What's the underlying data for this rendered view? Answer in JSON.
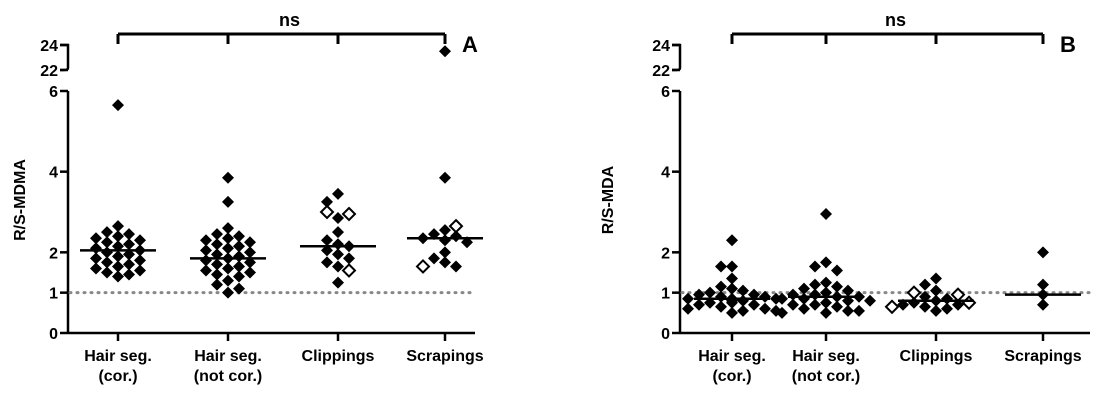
{
  "chart_data": [
    {
      "type": "scatter",
      "panel_label": "A",
      "ylabel": "R/S-MDMA",
      "xlabel": "",
      "categories": [
        "Hair seg.\n(cor.)",
        "Hair seg.\n(not cor.)",
        "Clippings",
        "Scrapings"
      ],
      "y_axis": "broken",
      "y_segments": [
        {
          "range": [
            0,
            6
          ],
          "ticks": [
            0,
            1,
            2,
            4,
            6
          ]
        },
        {
          "range": [
            22,
            24
          ],
          "ticks": [
            22,
            24
          ]
        }
      ],
      "reference_line": 1,
      "significance": "ns",
      "medians": [
        2.05,
        1.85,
        2.15,
        2.35
      ],
      "series": [
        {
          "name": "",
          "fill": "filled",
          "category": 0,
          "values": [
            5.65,
            2.65,
            2.5,
            2.45,
            2.4,
            2.35,
            2.3,
            2.25,
            2.2,
            2.15,
            2.1,
            2.05,
            2.0,
            1.95,
            1.9,
            1.85,
            1.8,
            1.75,
            1.7,
            1.65,
            1.6,
            1.55,
            1.5,
            1.45,
            1.4
          ]
        },
        {
          "name": "",
          "fill": "filled",
          "category": 1,
          "values": [
            3.85,
            3.25,
            2.6,
            2.45,
            2.4,
            2.35,
            2.3,
            2.25,
            2.2,
            2.15,
            2.1,
            2.05,
            2.0,
            1.95,
            1.9,
            1.85,
            1.8,
            1.75,
            1.7,
            1.65,
            1.6,
            1.55,
            1.5,
            1.45,
            1.4,
            1.3,
            1.2,
            1.1,
            1.0
          ]
        },
        {
          "name": "",
          "fill": "filled",
          "category": 2,
          "values": [
            3.45,
            3.25,
            2.85,
            2.5,
            2.3,
            2.2,
            2.15,
            2.05,
            1.95,
            1.85,
            1.75,
            1.65,
            1.25
          ]
        },
        {
          "name": "",
          "fill": "open",
          "category": 2,
          "values": [
            3.0,
            2.95,
            1.55
          ]
        },
        {
          "name": "",
          "fill": "filled",
          "category": 3,
          "values": [
            23.5,
            3.85,
            2.55,
            2.45,
            2.4,
            2.35,
            2.3,
            2.25,
            2.0,
            1.85,
            1.75,
            1.65
          ]
        },
        {
          "name": "",
          "fill": "open",
          "category": 3,
          "values": [
            2.65,
            1.65
          ]
        }
      ]
    },
    {
      "type": "scatter",
      "panel_label": "B",
      "ylabel": "R/S-MDA",
      "xlabel": "",
      "categories": [
        "Hair seg.\n(cor.)",
        "Hair seg.\n(not cor.)",
        "Clippings",
        "Scrapings"
      ],
      "y_axis": "broken",
      "y_segments": [
        {
          "range": [
            0,
            6
          ],
          "ticks": [
            0,
            1,
            2,
            4,
            6
          ]
        },
        {
          "range": [
            22,
            24
          ],
          "ticks": [
            22,
            24
          ]
        }
      ],
      "reference_line": 1,
      "significance": "ns",
      "medians": [
        0.85,
        0.9,
        0.8,
        0.95
      ],
      "series": [
        {
          "name": "",
          "fill": "filled",
          "category": 0,
          "values": [
            2.3,
            1.65,
            1.65,
            1.35,
            1.15,
            1.1,
            1.05,
            1.0,
            0.95,
            0.95,
            0.9,
            0.9,
            0.85,
            0.85,
            0.85,
            0.8,
            0.8,
            0.75,
            0.75,
            0.7,
            0.7,
            0.65,
            0.6,
            0.6,
            0.55,
            0.55,
            0.5
          ]
        },
        {
          "name": "",
          "fill": "filled",
          "category": 1,
          "values": [
            2.95,
            1.75,
            1.65,
            1.55,
            1.25,
            1.2,
            1.15,
            1.1,
            1.05,
            1.0,
            0.95,
            0.95,
            0.9,
            0.9,
            0.85,
            0.85,
            0.8,
            0.8,
            0.75,
            0.7,
            0.7,
            0.65,
            0.6,
            0.55,
            0.55,
            0.5,
            0.5
          ]
        },
        {
          "name": "",
          "fill": "filled",
          "category": 2,
          "values": [
            1.35,
            1.2,
            1.05,
            0.9,
            0.85,
            0.8,
            0.75,
            0.7,
            0.7,
            0.65,
            0.6,
            0.55
          ]
        },
        {
          "name": "",
          "fill": "open",
          "category": 2,
          "values": [
            1.0,
            0.95,
            0.75,
            0.65
          ]
        },
        {
          "name": "",
          "fill": "filled",
          "category": 3,
          "values": [
            2.0,
            1.2,
            0.95,
            0.7
          ]
        }
      ]
    }
  ]
}
